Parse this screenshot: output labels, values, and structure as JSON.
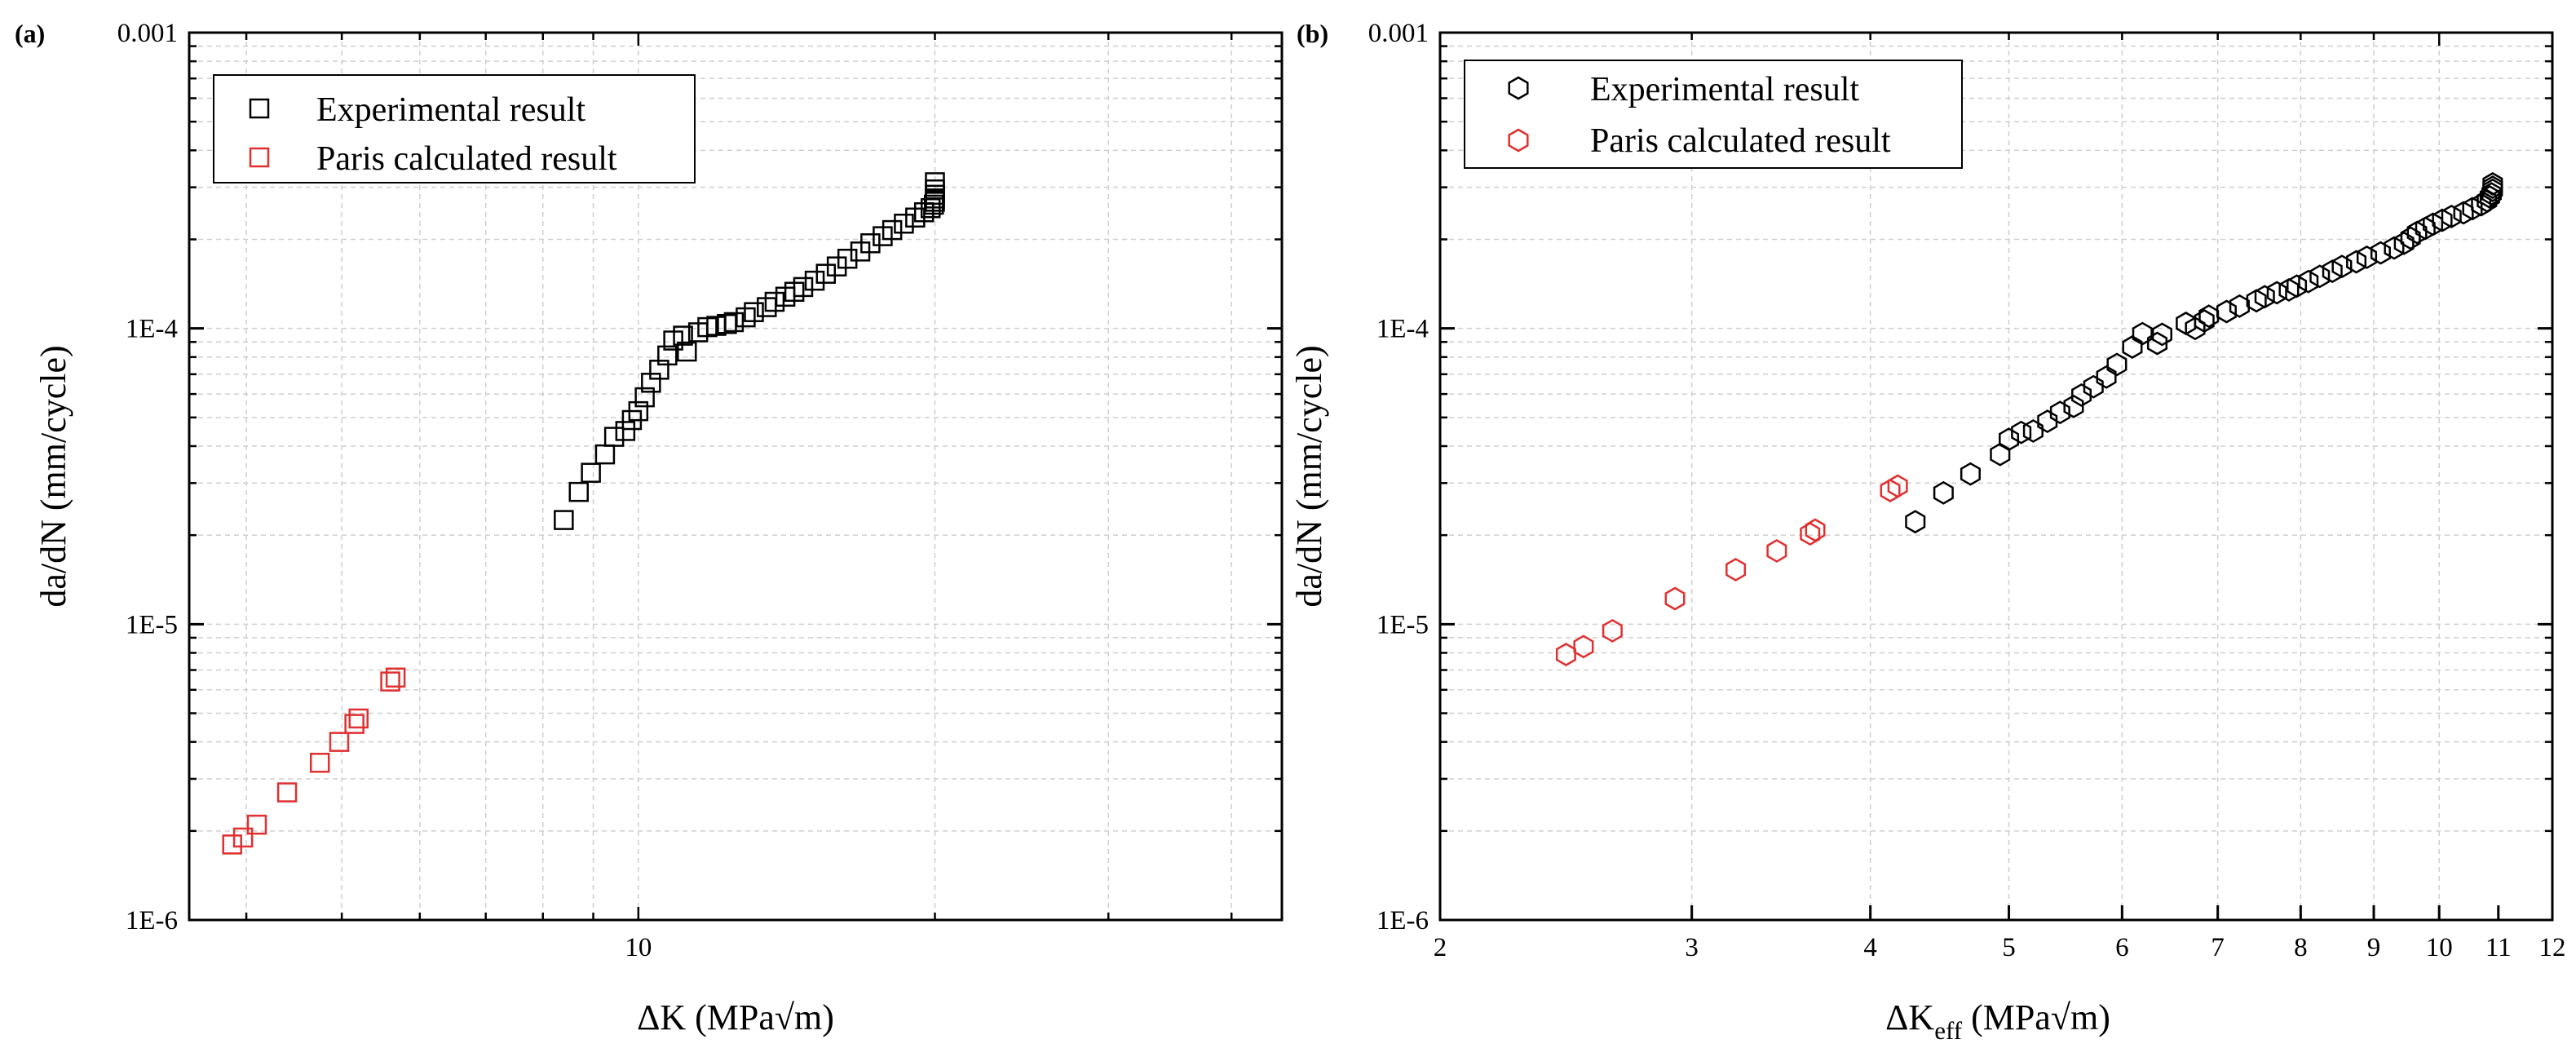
{
  "chart_data": [
    {
      "panel_label": "(a)",
      "type": "scatter",
      "xscale": "log",
      "yscale": "log",
      "xlim": [
        3.5,
        45
      ],
      "ylim": [
        1e-06,
        0.001
      ],
      "xlabel": "ΔK (MPa√m)",
      "ylabel": "da/dN (mm/cycle)",
      "marker": "square",
      "grid": "on",
      "legend_position": "top-left",
      "x_ticks": [
        {
          "value": 10,
          "label": "10"
        }
      ],
      "y_ticks": [
        {
          "value": 0.001,
          "label": "0.001"
        },
        {
          "value": 0.0001,
          "label": "1E-4"
        },
        {
          "value": 1e-05,
          "label": "1E-5"
        },
        {
          "value": 1e-06,
          "label": "1E-6"
        }
      ],
      "series": [
        {
          "name": "Experimental result",
          "color": "#000000",
          "x": [
            8.4,
            8.7,
            8.95,
            9.25,
            9.45,
            9.7,
            9.85,
            10.0,
            10.15,
            10.3,
            10.5,
            10.7,
            10.85,
            11.1,
            11.2,
            11.5,
            11.75,
            12.0,
            12.3,
            12.5,
            12.85,
            13.1,
            13.5,
            13.75,
            14.1,
            14.4,
            14.7,
            15.1,
            15.5,
            15.9,
            16.3,
            16.8,
            17.2,
            17.7,
            18.1,
            18.6,
            19.1,
            19.5,
            19.8,
            19.95,
            20.0,
            20.0,
            20.0,
            20.0,
            20.0
          ],
          "y": [
            2.25e-05,
            2.8e-05,
            3.25e-05,
            3.75e-05,
            4.3e-05,
            4.5e-05,
            4.9e-05,
            5.25e-05,
            5.85e-05,
            6.55e-05,
            7.25e-05,
            8.1e-05,
            9.1e-05,
            9.45e-05,
            8.35e-05,
            9.7e-05,
            0.000101,
            0.000102,
            0.0001035,
            0.000105,
            0.000109,
            0.0001135,
            0.000118,
            0.000123,
            0.000128,
            0.000133,
            0.000138,
            0.000145,
            0.000153,
            0.000162,
            0.000172,
            0.000182,
            0.000194,
            0.000205,
            0.000215,
            0.000226,
            0.000237,
            0.000247,
            0.000255,
            0.000262,
            0.000268,
            0.000275,
            0.000283,
            0.000295,
            0.000312
          ]
        },
        {
          "name": "Paris calculated result",
          "color": "#e03030",
          "x": [
            3.87,
            3.97,
            4.1,
            4.4,
            4.75,
            4.97,
            5.15,
            5.2,
            5.6,
            5.67
          ],
          "y": [
            1.8e-06,
            1.9e-06,
            2.1e-06,
            2.7e-06,
            3.4e-06,
            4e-06,
            4.6e-06,
            4.8e-06,
            6.4e-06,
            6.6e-06
          ]
        }
      ]
    },
    {
      "panel_label": "(b)",
      "type": "scatter",
      "xscale": "log",
      "yscale": "log",
      "xlim": [
        2,
        12
      ],
      "ylim": [
        1e-06,
        0.001
      ],
      "xlabel_main": "ΔK",
      "xlabel_sub": "eff",
      "xlabel_units": " (MPa√m)",
      "ylabel": "da/dN (mm/cycle)",
      "marker": "hexagon",
      "grid": "on",
      "legend_position": "top-left",
      "x_ticks": [
        {
          "value": 2,
          "label": "2"
        },
        {
          "value": 3,
          "label": "3"
        },
        {
          "value": 4,
          "label": "4"
        },
        {
          "value": 5,
          "label": "5"
        },
        {
          "value": 6,
          "label": "6"
        },
        {
          "value": 7,
          "label": "7"
        },
        {
          "value": 8,
          "label": "8"
        },
        {
          "value": 9,
          "label": "9"
        },
        {
          "value": 10,
          "label": "10"
        },
        {
          "value": 11,
          "label": "11"
        },
        {
          "value": 12,
          "label": "12"
        }
      ],
      "y_ticks": [
        {
          "value": 0.001,
          "label": "0.001"
        },
        {
          "value": 0.0001,
          "label": "1E-4"
        },
        {
          "value": 1e-05,
          "label": "1E-5"
        },
        {
          "value": 1e-06,
          "label": "1E-6"
        }
      ],
      "series": [
        {
          "name": "Experimental result",
          "color": "#000000",
          "x": [
            4.3,
            4.5,
            4.7,
            4.93,
            5.0,
            5.1,
            5.2,
            5.32,
            5.43,
            5.55,
            5.62,
            5.73,
            5.85,
            5.95,
            6.1,
            6.2,
            6.35,
            6.4,
            6.65,
            6.75,
            6.85,
            6.9,
            7.1,
            7.25,
            7.45,
            7.55,
            7.7,
            7.85,
            7.95,
            8.1,
            8.25,
            8.42,
            8.55,
            8.75,
            8.9,
            9.1,
            9.3,
            9.45,
            9.55,
            9.65,
            9.78,
            9.9,
            10.05,
            10.2,
            10.4,
            10.55,
            10.7,
            10.8,
            10.85,
            10.88,
            10.9,
            10.9,
            10.9
          ],
          "y": [
            2.22e-05,
            2.78e-05,
            3.22e-05,
            3.75e-05,
            4.22e-05,
            4.45e-05,
            4.5e-05,
            4.85e-05,
            5.2e-05,
            5.45e-05,
            5.95e-05,
            6.35e-05,
            6.85e-05,
            7.55e-05,
            8.65e-05,
            9.6e-05,
            8.9e-05,
            9.55e-05,
            0.000104,
            0.0001,
            0.000106,
            0.00011,
            0.000114,
            0.000119,
            0.000124,
            0.000128,
            0.000132,
            0.000135,
            0.000139,
            0.000144,
            0.00015,
            0.000156,
            0.000162,
            0.000168,
            0.000174,
            0.00018,
            0.000187,
            0.000194,
            0.000202,
            0.000211,
            0.000218,
            0.000225,
            0.000232,
            0.000239,
            0.000246,
            0.000254,
            0.000262,
            0.00027,
            0.000278,
            0.000285,
            0.000293,
            0.0003,
            0.000308
          ]
        },
        {
          "name": "Paris calculated result",
          "color": "#e03030",
          "x": [
            2.45,
            2.52,
            2.64,
            2.92,
            3.22,
            3.44,
            3.63,
            3.66,
            4.13,
            4.18
          ],
          "y": [
            7.9e-06,
            8.4e-06,
            9.5e-06,
            1.22e-05,
            1.53e-05,
            1.77e-05,
            2.02e-05,
            2.08e-05,
            2.83e-05,
            2.93e-05
          ]
        }
      ]
    }
  ]
}
